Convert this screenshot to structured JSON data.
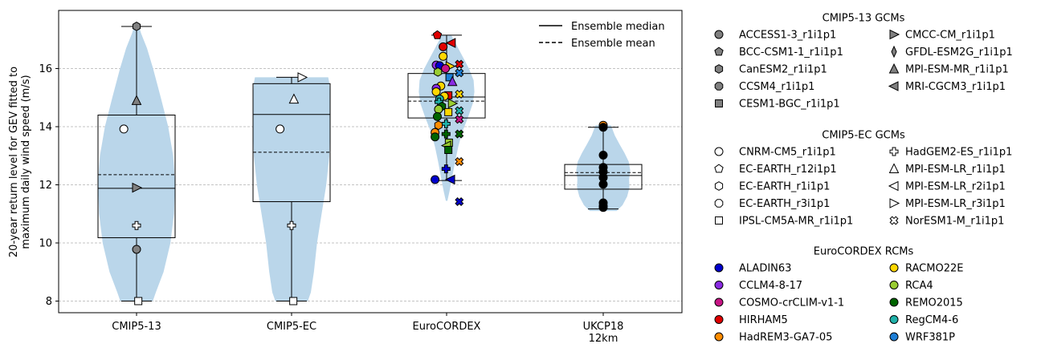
{
  "chart_data": {
    "type": "violin-box",
    "ylabel_lines": [
      "20-year return level for GEV fitted to",
      "maximum daily wind speed (m/s)"
    ],
    "categories": [
      [
        "CMIP5-13"
      ],
      [
        "CMIP5-EC"
      ],
      [
        "EuroCORDEX"
      ],
      [
        "UKCP18",
        "12km"
      ]
    ],
    "ylim": [
      7.6,
      18.0
    ],
    "yticks": [
      8,
      10,
      12,
      14,
      16
    ],
    "grid": "horizontal dashed",
    "median_label": "Ensemble median",
    "mean_label": "Ensemble mean",
    "groups": [
      {
        "name": "CMIP5-13",
        "box": {
          "q1": 10.18,
          "median": 11.88,
          "q3": 14.4,
          "mean": 12.35,
          "whisker_low": 8.0,
          "whisker_high": 17.45
        },
        "violin": [
          [
            8.0,
            0.42
          ],
          [
            8.3,
            0.5
          ],
          [
            9.0,
            0.7
          ],
          [
            10.0,
            0.88
          ],
          [
            11.0,
            0.97
          ],
          [
            12.0,
            1.0
          ],
          [
            13.0,
            0.95
          ],
          [
            14.0,
            0.82
          ],
          [
            15.0,
            0.63
          ],
          [
            16.0,
            0.43
          ],
          [
            16.7,
            0.27
          ],
          [
            17.2,
            0.12
          ],
          [
            17.45,
            0.06
          ]
        ],
        "points": [
          {
            "y": 17.45,
            "marker": "hexagon",
            "color": "#808080"
          },
          {
            "y": 14.9,
            "marker": "triangle-up",
            "color": "#808080"
          },
          {
            "y": 13.92,
            "marker": "circle",
            "color": "#ffffff",
            "dx": -0.22
          },
          {
            "y": 11.9,
            "marker": "triangle-right",
            "color": "#808080"
          },
          {
            "y": 10.6,
            "marker": "plus",
            "color": "#ffffff"
          },
          {
            "y": 9.78,
            "marker": "circle",
            "color": "#808080"
          },
          {
            "y": 8.0,
            "marker": "square",
            "color": "#ffffff",
            "dx": 0.03
          }
        ]
      },
      {
        "name": "CMIP5-EC",
        "box": {
          "q1": 11.42,
          "median": 14.42,
          "q3": 15.48,
          "mean": 13.12,
          "whisker_low": 8.0,
          "whisker_high": 15.7
        },
        "violin": [
          [
            8.0,
            0.42
          ],
          [
            8.3,
            0.5
          ],
          [
            9.0,
            0.58
          ],
          [
            10.0,
            0.66
          ],
          [
            11.0,
            0.78
          ],
          [
            12.0,
            0.9
          ],
          [
            13.0,
            0.98
          ],
          [
            14.0,
            1.0
          ],
          [
            15.0,
            1.0
          ],
          [
            15.5,
            0.98
          ],
          [
            15.7,
            0.95
          ]
        ],
        "points": [
          {
            "y": 15.7,
            "marker": "triangle-right",
            "color": "#ffffff",
            "dx": 0.18
          },
          {
            "y": 14.95,
            "marker": "triangle-up",
            "color": "#ffffff",
            "dx": 0.04
          },
          {
            "y": 13.92,
            "marker": "circle",
            "color": "#ffffff",
            "dx": -0.2
          },
          {
            "y": 10.6,
            "marker": "plus",
            "color": "#ffffff"
          },
          {
            "y": 8.0,
            "marker": "square",
            "color": "#ffffff",
            "dx": 0.03
          }
        ]
      },
      {
        "name": "EuroCORDEX",
        "box": {
          "q1": 14.3,
          "median": 15.02,
          "q3": 15.83,
          "mean": 14.88,
          "whisker_low": 12.15,
          "whisker_high": 17.15
        },
        "violin": [
          [
            11.45,
            0.02
          ],
          [
            11.8,
            0.08
          ],
          [
            12.3,
            0.15
          ],
          [
            12.8,
            0.22
          ],
          [
            13.3,
            0.3
          ],
          [
            13.8,
            0.4
          ],
          [
            14.3,
            0.55
          ],
          [
            14.8,
            0.68
          ],
          [
            15.2,
            0.72
          ],
          [
            15.6,
            0.7
          ],
          [
            16.0,
            0.58
          ],
          [
            16.4,
            0.42
          ],
          [
            16.8,
            0.26
          ],
          [
            17.15,
            0.12
          ]
        ],
        "points": [
          {
            "y": 17.15,
            "marker": "pentagon",
            "color": "#e00000",
            "dx": -0.16
          },
          {
            "y": 16.88,
            "marker": "triangle-left",
            "color": "#e00000",
            "dx": 0.08
          },
          {
            "y": 16.75,
            "marker": "circle",
            "color": "#e00000",
            "dx": -0.06
          },
          {
            "y": 16.42,
            "marker": "circle",
            "color": "#ffd700",
            "dx": -0.06
          },
          {
            "y": 16.15,
            "marker": "x",
            "color": "#e00000",
            "dx": 0.22
          },
          {
            "y": 16.12,
            "marker": "circle",
            "color": "#8a2be2",
            "dx": -0.18
          },
          {
            "y": 16.1,
            "marker": "circle",
            "color": "#0000cc",
            "dx": -0.12
          },
          {
            "y": 16.08,
            "marker": "triangle-right",
            "color": "#ffd700",
            "dx": 0.06
          },
          {
            "y": 16.0,
            "marker": "circle",
            "color": "#c71585",
            "dx": -0.02
          },
          {
            "y": 15.88,
            "marker": "hexagon",
            "color": "#9acd32",
            "dx": -0.15
          },
          {
            "y": 15.85,
            "marker": "x",
            "color": "#1e7fd6",
            "dx": 0.22
          },
          {
            "y": 15.7,
            "marker": "square",
            "color": "#1e7fd6",
            "dx": 0.05
          },
          {
            "y": 15.55,
            "marker": "triangle-up",
            "color": "#8a2be2",
            "dx": 0.1
          },
          {
            "y": 15.4,
            "marker": "circle",
            "color": "#ffd700",
            "dx": -0.1
          },
          {
            "y": 15.32,
            "marker": "circle",
            "color": "#8a2be2",
            "dx": -0.18
          },
          {
            "y": 15.2,
            "marker": "circle",
            "color": "#ffd700",
            "dx": -0.18
          },
          {
            "y": 15.12,
            "marker": "x",
            "color": "#ffd700",
            "dx": 0.22
          },
          {
            "y": 15.08,
            "marker": "square",
            "color": "#e00000",
            "dx": 0.03
          },
          {
            "y": 15.05,
            "marker": "circle",
            "color": "#ffd700",
            "dx": -0.04
          },
          {
            "y": 14.95,
            "marker": "circle",
            "color": "#20b2aa",
            "dx": -0.12
          },
          {
            "y": 14.85,
            "marker": "plus",
            "color": "#20b2aa",
            "dx": -0.13
          },
          {
            "y": 14.8,
            "marker": "triangle-right",
            "color": "#9acd32",
            "dx": 0.1
          },
          {
            "y": 14.7,
            "marker": "hexagon",
            "color": "#006400",
            "dx": -0.08
          },
          {
            "y": 14.6,
            "marker": "circle",
            "color": "#9acd32",
            "dx": -0.14
          },
          {
            "y": 14.55,
            "marker": "x",
            "color": "#20b2aa",
            "dx": 0.22
          },
          {
            "y": 14.5,
            "marker": "square",
            "color": "#ffd700",
            "dx": 0.03
          },
          {
            "y": 14.35,
            "marker": "circle",
            "color": "#006400",
            "dx": -0.16
          },
          {
            "y": 14.25,
            "marker": "x",
            "color": "#c71585",
            "dx": 0.22
          },
          {
            "y": 14.1,
            "marker": "plus",
            "color": "#20b2aa",
            "dx": -0.01
          },
          {
            "y": 14.05,
            "marker": "hexagon",
            "color": "#ff8c00",
            "dx": -0.14
          },
          {
            "y": 13.8,
            "marker": "circle",
            "color": "#ff8c00",
            "dx": -0.2
          },
          {
            "y": 13.75,
            "marker": "plus",
            "color": "#006400",
            "dx": -0.01
          },
          {
            "y": 13.75,
            "marker": "x",
            "color": "#006400",
            "dx": 0.22
          },
          {
            "y": 13.65,
            "marker": "circle",
            "color": "#006400",
            "dx": -0.2
          },
          {
            "y": 13.45,
            "marker": "square",
            "color": "#9acd32",
            "dx": 0.04
          },
          {
            "y": 13.35,
            "marker": "triangle-left",
            "color": "#9acd32",
            "dx": 0.0
          },
          {
            "y": 13.2,
            "marker": "square",
            "color": "#006400",
            "dx": 0.03
          },
          {
            "y": 12.8,
            "marker": "x",
            "color": "#ff8c00",
            "dx": 0.22
          },
          {
            "y": 12.55,
            "marker": "plus",
            "color": "#0000cc",
            "dx": -0.01
          },
          {
            "y": 12.18,
            "marker": "circle",
            "color": "#0000cc",
            "dx": -0.2
          },
          {
            "y": 12.18,
            "marker": "triangle-left",
            "color": "#0000cc",
            "dx": 0.07
          },
          {
            "y": 11.42,
            "marker": "x",
            "color": "#0000cc",
            "dx": 0.22
          }
        ]
      },
      {
        "name": "UKCP18 12km",
        "box": {
          "q1": 11.85,
          "median": 12.32,
          "q3": 12.7,
          "mean": 12.42,
          "whisker_low": 11.17,
          "whisker_high": 13.98
        },
        "violin": [
          [
            11.1,
            0.35
          ],
          [
            11.3,
            0.5
          ],
          [
            11.6,
            0.62
          ],
          [
            11.9,
            0.68
          ],
          [
            12.2,
            0.67
          ],
          [
            12.5,
            0.7
          ],
          [
            12.8,
            0.66
          ],
          [
            13.1,
            0.55
          ],
          [
            13.4,
            0.42
          ],
          [
            13.7,
            0.3
          ],
          [
            14.05,
            0.2
          ]
        ],
        "points": [
          {
            "y": 14.05,
            "marker": "circle",
            "color": "#ff8c00"
          },
          {
            "y": 13.98,
            "marker": "circle",
            "color": "#000000"
          },
          {
            "y": 13.02,
            "marker": "circle",
            "color": "#000000"
          },
          {
            "y": 12.6,
            "marker": "circle",
            "color": "#000000"
          },
          {
            "y": 12.45,
            "marker": "circle",
            "color": "#000000"
          },
          {
            "y": 12.25,
            "marker": "circle",
            "color": "#000000"
          },
          {
            "y": 12.02,
            "marker": "circle",
            "color": "#000000"
          },
          {
            "y": 11.38,
            "marker": "circle",
            "color": "#000000"
          },
          {
            "y": 11.28,
            "marker": "circle",
            "color": "#000000"
          },
          {
            "y": 11.22,
            "marker": "circle",
            "color": "#000000"
          }
        ]
      }
    ],
    "legends": [
      {
        "title": "CMIP5-13 GCMs",
        "columns": [
          [
            {
              "label": "ACCESS1-3_r1i1p1",
              "marker": "circle",
              "color": "#808080"
            },
            {
              "label": "BCC-CSM1-1_r1i1p1",
              "marker": "pentagon",
              "color": "#808080"
            },
            {
              "label": "CanESM2_r1i1p1",
              "marker": "hexagon",
              "color": "#808080"
            },
            {
              "label": "CCSM4_r1i1p1",
              "marker": "octagon",
              "color": "#808080"
            },
            {
              "label": "CESM1-BGC_r1i1p1",
              "marker": "square",
              "color": "#808080"
            }
          ],
          [
            {
              "label": "CMCC-CM_r1i1p1",
              "marker": "triangle-right",
              "color": "#808080"
            },
            {
              "label": "GFDL-ESM2G_r1i1p1",
              "marker": "diamond-thin",
              "color": "#808080"
            },
            {
              "label": "MPI-ESM-MR_r1i1p1",
              "marker": "triangle-up",
              "color": "#808080"
            },
            {
              "label": "MRI-CGCM3_r1i1p1",
              "marker": "triangle-left",
              "color": "#808080"
            }
          ]
        ]
      },
      {
        "title": "CMIP5-EC GCMs",
        "columns": [
          [
            {
              "label": "CNRM-CM5_r1i1p1",
              "marker": "circle",
              "color": "#ffffff"
            },
            {
              "label": "EC-EARTH_r12i1p1",
              "marker": "pentagon",
              "color": "#ffffff"
            },
            {
              "label": "EC-EARTH_r1i1p1",
              "marker": "hexagon",
              "color": "#ffffff"
            },
            {
              "label": "EC-EARTH_r3i1p1",
              "marker": "octagon",
              "color": "#ffffff"
            },
            {
              "label": "IPSL-CM5A-MR_r1i1p1",
              "marker": "square",
              "color": "#ffffff"
            }
          ],
          [
            {
              "label": "HadGEM2-ES_r1i1p1",
              "marker": "plus",
              "color": "#ffffff"
            },
            {
              "label": "MPI-ESM-LR_r1i1p1",
              "marker": "triangle-up",
              "color": "#ffffff"
            },
            {
              "label": "MPI-ESM-LR_r2i1p1",
              "marker": "triangle-left",
              "color": "#ffffff"
            },
            {
              "label": "MPI-ESM-LR_r3i1p1",
              "marker": "triangle-right",
              "color": "#ffffff"
            },
            {
              "label": "NorESM1-M_r1i1p1",
              "marker": "x",
              "color": "#ffffff"
            }
          ]
        ]
      },
      {
        "title": "EuroCORDEX RCMs",
        "columns": [
          [
            {
              "label": "ALADIN63",
              "marker": "circle",
              "color": "#0000cc"
            },
            {
              "label": "CCLM4-8-17",
              "marker": "circle",
              "color": "#8a2be2"
            },
            {
              "label": "COSMO-crCLIM-v1-1",
              "marker": "circle",
              "color": "#c71585"
            },
            {
              "label": "HIRHAM5",
              "marker": "circle",
              "color": "#e00000"
            },
            {
              "label": "HadREM3-GA7-05",
              "marker": "circle",
              "color": "#ff8c00"
            }
          ],
          [
            {
              "label": "RACMO22E",
              "marker": "circle",
              "color": "#ffd700"
            },
            {
              "label": "RCA4",
              "marker": "circle",
              "color": "#9acd32"
            },
            {
              "label": "REMO2015",
              "marker": "circle",
              "color": "#006400"
            },
            {
              "label": "RegCM4-6",
              "marker": "circle",
              "color": "#20b2aa"
            },
            {
              "label": "WRF381P",
              "marker": "circle",
              "color": "#1e7fd6"
            }
          ]
        ]
      }
    ],
    "colors": {
      "violin": "#bad6ea",
      "grid": "#b0b0b0"
    }
  }
}
